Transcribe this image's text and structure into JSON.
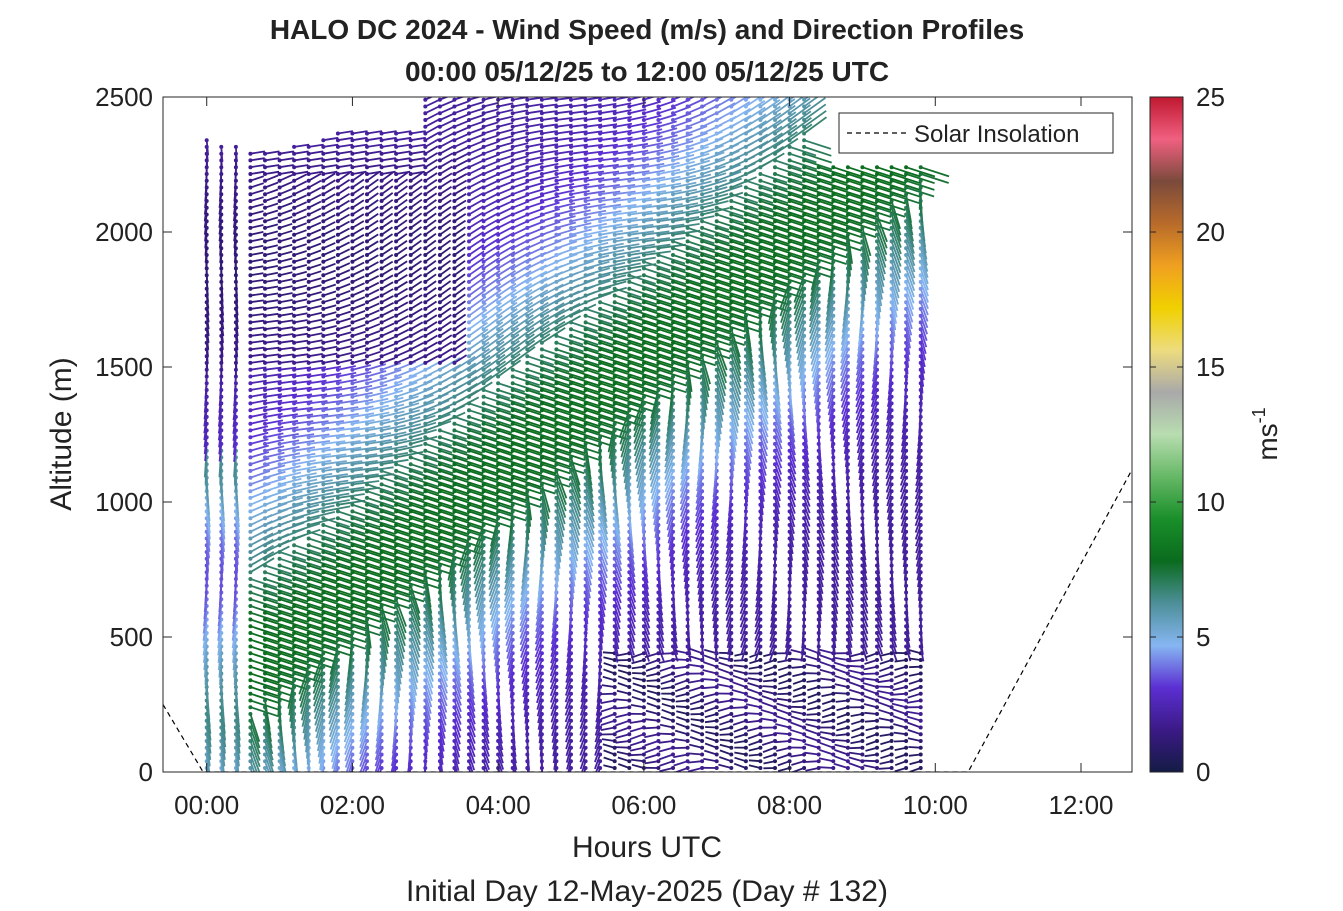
{
  "chart_data": {
    "type": "wind_barb_profile",
    "title": "HALO DC 2024 - Wind Speed (m/s) and Direction Profiles",
    "subtitle": "00:00 05/12/25 to 12:00 05/12/25  UTC",
    "xlabel": "Hours UTC",
    "ylabel": "Altitude (m)",
    "footer": "Initial Day 12-May-2025 (Day # 132)",
    "x_ticks": [
      "00:00",
      "02:00",
      "04:00",
      "06:00",
      "08:00",
      "10:00",
      "12:00"
    ],
    "y_ticks": [
      "0",
      "500",
      "1000",
      "1500",
      "2000",
      "2500"
    ],
    "xlim_hours": [
      -0.6,
      12.7
    ],
    "ylim": [
      0,
      2500
    ],
    "colorbar": {
      "label": "ms",
      "label_superscript": "-1",
      "ticks": [
        "0",
        "5",
        "10",
        "15",
        "20",
        "25"
      ],
      "range": [
        0,
        25
      ],
      "colors": [
        "#141b45",
        "#3b1a86",
        "#5b2fd2",
        "#86b6f2",
        "#4d8f99",
        "#0a6b1e",
        "#1a8f2a",
        "#66b866",
        "#b8ddb0",
        "#a9a9a9",
        "#eddc7e",
        "#f0d000",
        "#f0a020",
        "#b86b2a",
        "#7b4a3c",
        "#f06080",
        "#c01830"
      ]
    },
    "legend": {
      "label": "Solar Insolation",
      "position": "top-right"
    },
    "solar_insolation": {
      "x_hours": [
        -0.6,
        -0.05,
        10.45,
        12.7
      ],
      "y": [
        250,
        0,
        0,
        1120
      ]
    },
    "data_window_hours": [
      0,
      9.8
    ],
    "notes": "Wind vectors at ~0.2 h × 25 m spacing; low speeds (1–3 m/s, purple/navy) aloft early and near surface late, moderate 5–9 m/s (blue/green) in a band rising from ~300 m at 01:00 to ~2300 m at 09:00."
  }
}
